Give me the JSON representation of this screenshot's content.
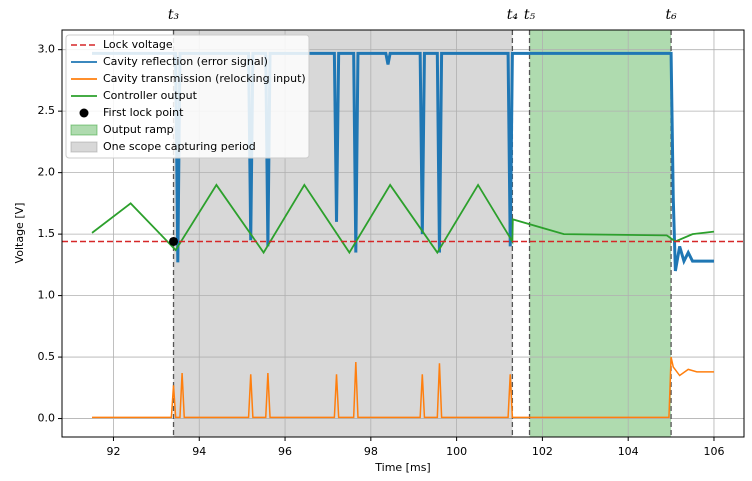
{
  "chart_data": {
    "type": "line",
    "xlabel": "Time [ms]",
    "ylabel": "Voltage [V]",
    "xlim": [
      90.8,
      106.7
    ],
    "ylim": [
      -0.15,
      3.16
    ],
    "xticks": [
      92,
      94,
      96,
      98,
      100,
      102,
      104,
      106
    ],
    "yticks": [
      {
        "value": 0,
        "label": "0.0"
      },
      0.5,
      {
        "value": 1,
        "label": "1.0"
      },
      1.5,
      {
        "value": 2,
        "label": "2.0"
      },
      2.5,
      {
        "value": 3,
        "label": "3.0"
      }
    ],
    "grid": true,
    "hline": {
      "name": "Lock voltage",
      "color": "#d62728",
      "value": 1.44
    },
    "series": [
      {
        "name": "Cavity reflection (error signal)",
        "color": "#1f77b4",
        "x": [
          91.5,
          93.45,
          93.5,
          93.55,
          95.15,
          95.2,
          95.25,
          95.55,
          95.6,
          95.65,
          97.15,
          97.2,
          97.25,
          97.6,
          97.65,
          97.7,
          98.35,
          98.4,
          98.45,
          99.15,
          99.2,
          99.25,
          99.55,
          99.6,
          99.65,
          101.2,
          101.25,
          101.3,
          105.0,
          105.05,
          105.1,
          105.2,
          105.3,
          105.4,
          105.5,
          106.0
        ],
        "values": [
          2.97,
          2.97,
          1.27,
          2.97,
          2.97,
          1.45,
          2.97,
          2.97,
          1.4,
          2.97,
          2.97,
          1.6,
          2.97,
          2.97,
          1.35,
          2.97,
          2.97,
          2.88,
          2.97,
          2.97,
          1.5,
          2.97,
          2.97,
          1.35,
          2.97,
          2.97,
          1.4,
          2.97,
          2.97,
          1.8,
          1.2,
          1.4,
          1.28,
          1.35,
          1.28,
          1.28
        ]
      },
      {
        "name": "Cavity transmission (relocking input)",
        "color": "#ff7f0e",
        "x": [
          91.5,
          93.35,
          93.4,
          93.45,
          93.55,
          93.6,
          93.65,
          95.15,
          95.2,
          95.25,
          95.55,
          95.6,
          95.65,
          97.15,
          97.2,
          97.25,
          97.6,
          97.65,
          97.7,
          99.15,
          99.2,
          99.25,
          99.55,
          99.6,
          99.65,
          101.2,
          101.25,
          101.3,
          104.95,
          105.0,
          105.05,
          105.2,
          105.4,
          105.6,
          106.0
        ],
        "values": [
          0.01,
          0.01,
          0.27,
          0.01,
          0.01,
          0.37,
          0.01,
          0.01,
          0.36,
          0.01,
          0.01,
          0.37,
          0.01,
          0.01,
          0.36,
          0.01,
          0.01,
          0.46,
          0.01,
          0.01,
          0.36,
          0.01,
          0.01,
          0.45,
          0.01,
          0.01,
          0.36,
          0.01,
          0.01,
          0.5,
          0.42,
          0.35,
          0.4,
          0.38,
          0.38
        ]
      },
      {
        "name": "Controller output",
        "color": "#2ca02c",
        "x": [
          91.5,
          92.4,
          93.45,
          94.4,
          95.5,
          96.45,
          97.5,
          98.45,
          99.55,
          100.5,
          101.3,
          101.31,
          102.5,
          104.9,
          105.1,
          105.5,
          106.0
        ],
        "values": [
          1.51,
          1.75,
          1.37,
          1.9,
          1.35,
          1.9,
          1.35,
          1.9,
          1.35,
          1.9,
          1.44,
          1.62,
          1.5,
          1.49,
          1.44,
          1.5,
          1.52
        ]
      }
    ],
    "points": [
      {
        "name": "First lock point",
        "color": "#000000",
        "x": 93.4,
        "y": 1.44
      }
    ],
    "spans": [
      {
        "name": "Output ramp",
        "color": "#2ca02c",
        "from": 101.7,
        "to": 105.0
      },
      {
        "name": "One scope capturing period",
        "color": "#999999",
        "from": 93.4,
        "to": 101.3
      }
    ],
    "vlines": [
      {
        "value": 93.4,
        "label": "t₃"
      },
      {
        "value": 101.3,
        "label": "t₄"
      },
      {
        "value": 101.7,
        "label": "t₅"
      },
      {
        "value": 105.0,
        "label": "t₆"
      }
    ]
  }
}
